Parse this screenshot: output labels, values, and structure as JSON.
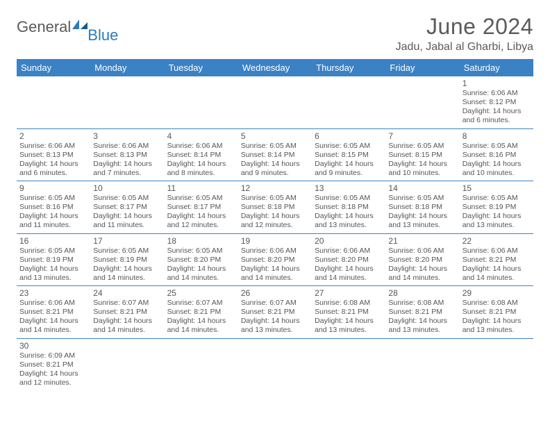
{
  "brand": {
    "general": "General",
    "blue": "Blue"
  },
  "header": {
    "title": "June 2024",
    "location": "Jadu, Jabal al Gharbi, Libya"
  },
  "colors": {
    "header_bg": "#3b82c4",
    "header_text": "#ffffff",
    "border": "#3b82c4",
    "text": "#555555",
    "brand_gray": "#5a5a5a",
    "brand_blue": "#2b7bbf"
  },
  "weekdays": [
    "Sunday",
    "Monday",
    "Tuesday",
    "Wednesday",
    "Thursday",
    "Friday",
    "Saturday"
  ],
  "weeks": [
    [
      null,
      null,
      null,
      null,
      null,
      null,
      {
        "n": "1",
        "sr": "6:06 AM",
        "ss": "8:12 PM",
        "dl": "14 hours and 6 minutes."
      }
    ],
    [
      {
        "n": "2",
        "sr": "6:06 AM",
        "ss": "8:13 PM",
        "dl": "14 hours and 6 minutes."
      },
      {
        "n": "3",
        "sr": "6:06 AM",
        "ss": "8:13 PM",
        "dl": "14 hours and 7 minutes."
      },
      {
        "n": "4",
        "sr": "6:06 AM",
        "ss": "8:14 PM",
        "dl": "14 hours and 8 minutes."
      },
      {
        "n": "5",
        "sr": "6:05 AM",
        "ss": "8:14 PM",
        "dl": "14 hours and 9 minutes."
      },
      {
        "n": "6",
        "sr": "6:05 AM",
        "ss": "8:15 PM",
        "dl": "14 hours and 9 minutes."
      },
      {
        "n": "7",
        "sr": "6:05 AM",
        "ss": "8:15 PM",
        "dl": "14 hours and 10 minutes."
      },
      {
        "n": "8",
        "sr": "6:05 AM",
        "ss": "8:16 PM",
        "dl": "14 hours and 10 minutes."
      }
    ],
    [
      {
        "n": "9",
        "sr": "6:05 AM",
        "ss": "8:16 PM",
        "dl": "14 hours and 11 minutes."
      },
      {
        "n": "10",
        "sr": "6:05 AM",
        "ss": "8:17 PM",
        "dl": "14 hours and 11 minutes."
      },
      {
        "n": "11",
        "sr": "6:05 AM",
        "ss": "8:17 PM",
        "dl": "14 hours and 12 minutes."
      },
      {
        "n": "12",
        "sr": "6:05 AM",
        "ss": "8:18 PM",
        "dl": "14 hours and 12 minutes."
      },
      {
        "n": "13",
        "sr": "6:05 AM",
        "ss": "8:18 PM",
        "dl": "14 hours and 13 minutes."
      },
      {
        "n": "14",
        "sr": "6:05 AM",
        "ss": "8:18 PM",
        "dl": "14 hours and 13 minutes."
      },
      {
        "n": "15",
        "sr": "6:05 AM",
        "ss": "8:19 PM",
        "dl": "14 hours and 13 minutes."
      }
    ],
    [
      {
        "n": "16",
        "sr": "6:05 AM",
        "ss": "8:19 PM",
        "dl": "14 hours and 13 minutes."
      },
      {
        "n": "17",
        "sr": "6:05 AM",
        "ss": "8:19 PM",
        "dl": "14 hours and 14 minutes."
      },
      {
        "n": "18",
        "sr": "6:05 AM",
        "ss": "8:20 PM",
        "dl": "14 hours and 14 minutes."
      },
      {
        "n": "19",
        "sr": "6:06 AM",
        "ss": "8:20 PM",
        "dl": "14 hours and 14 minutes."
      },
      {
        "n": "20",
        "sr": "6:06 AM",
        "ss": "8:20 PM",
        "dl": "14 hours and 14 minutes."
      },
      {
        "n": "21",
        "sr": "6:06 AM",
        "ss": "8:20 PM",
        "dl": "14 hours and 14 minutes."
      },
      {
        "n": "22",
        "sr": "6:06 AM",
        "ss": "8:21 PM",
        "dl": "14 hours and 14 minutes."
      }
    ],
    [
      {
        "n": "23",
        "sr": "6:06 AM",
        "ss": "8:21 PM",
        "dl": "14 hours and 14 minutes."
      },
      {
        "n": "24",
        "sr": "6:07 AM",
        "ss": "8:21 PM",
        "dl": "14 hours and 14 minutes."
      },
      {
        "n": "25",
        "sr": "6:07 AM",
        "ss": "8:21 PM",
        "dl": "14 hours and 14 minutes."
      },
      {
        "n": "26",
        "sr": "6:07 AM",
        "ss": "8:21 PM",
        "dl": "14 hours and 13 minutes."
      },
      {
        "n": "27",
        "sr": "6:08 AM",
        "ss": "8:21 PM",
        "dl": "14 hours and 13 minutes."
      },
      {
        "n": "28",
        "sr": "6:08 AM",
        "ss": "8:21 PM",
        "dl": "14 hours and 13 minutes."
      },
      {
        "n": "29",
        "sr": "6:08 AM",
        "ss": "8:21 PM",
        "dl": "14 hours and 13 minutes."
      }
    ],
    [
      {
        "n": "30",
        "sr": "6:09 AM",
        "ss": "8:21 PM",
        "dl": "14 hours and 12 minutes."
      },
      null,
      null,
      null,
      null,
      null,
      null
    ]
  ],
  "labels": {
    "sunrise": "Sunrise:",
    "sunset": "Sunset:",
    "daylight": "Daylight:"
  }
}
